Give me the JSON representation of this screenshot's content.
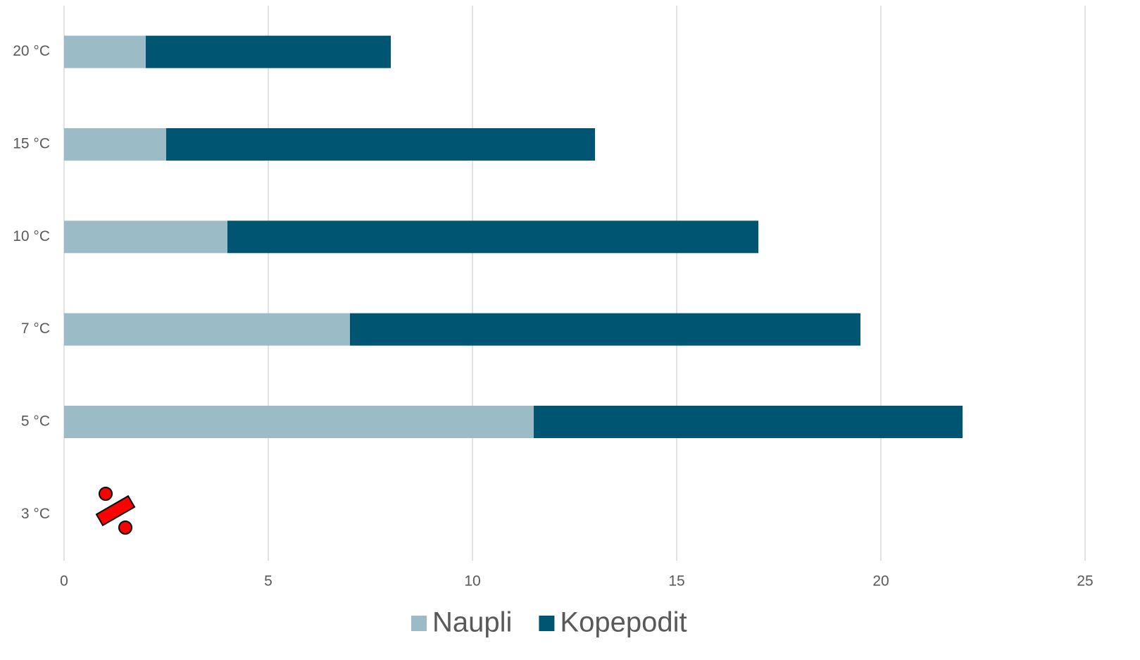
{
  "chart_data": {
    "type": "stacked-barh",
    "categories": [
      "20 °C",
      "15 °C",
      "10 °C",
      "7 °C",
      "5 °C",
      "3 °C"
    ],
    "series": [
      {
        "name": "Naupli",
        "color": "#9bbbc7",
        "values": [
          2,
          2.5,
          4,
          7,
          11.5,
          null
        ]
      },
      {
        "name": "Kopepodit",
        "color": "#005572",
        "values": [
          6,
          10.5,
          13,
          12.5,
          10.5,
          null
        ]
      }
    ],
    "xlim": [
      0,
      25
    ],
    "xticks": [
      0,
      5,
      10,
      15,
      20,
      25
    ],
    "grid": true,
    "legend": "bottom"
  }
}
